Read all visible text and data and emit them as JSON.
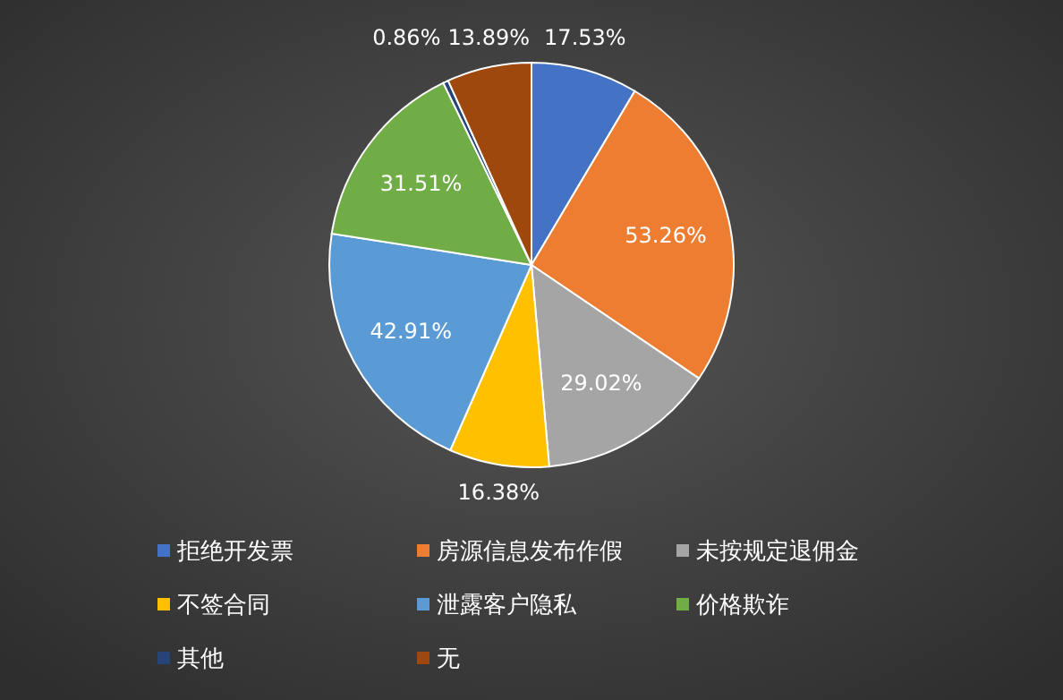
{
  "chart_data": {
    "type": "pie",
    "categories": [
      "拒绝开发票",
      "房源信息发布作假",
      "未按规定退佣金",
      "不签合同",
      "泄露客户隐私",
      "价格欺诈",
      "其他",
      "无"
    ],
    "values": [
      17.53,
      53.26,
      29.02,
      16.38,
      42.91,
      31.51,
      0.86,
      13.89
    ],
    "value_labels": [
      "17.53%",
      "53.26%",
      "29.02%",
      "16.38%",
      "42.91%",
      "31.51%",
      "0.86%",
      "13.89%"
    ],
    "colors": [
      "#4472c4",
      "#ed7d31",
      "#a5a5a5",
      "#ffc000",
      "#5b9bd5",
      "#70ad47",
      "#264478",
      "#9e480e"
    ],
    "legend": "bottom"
  }
}
